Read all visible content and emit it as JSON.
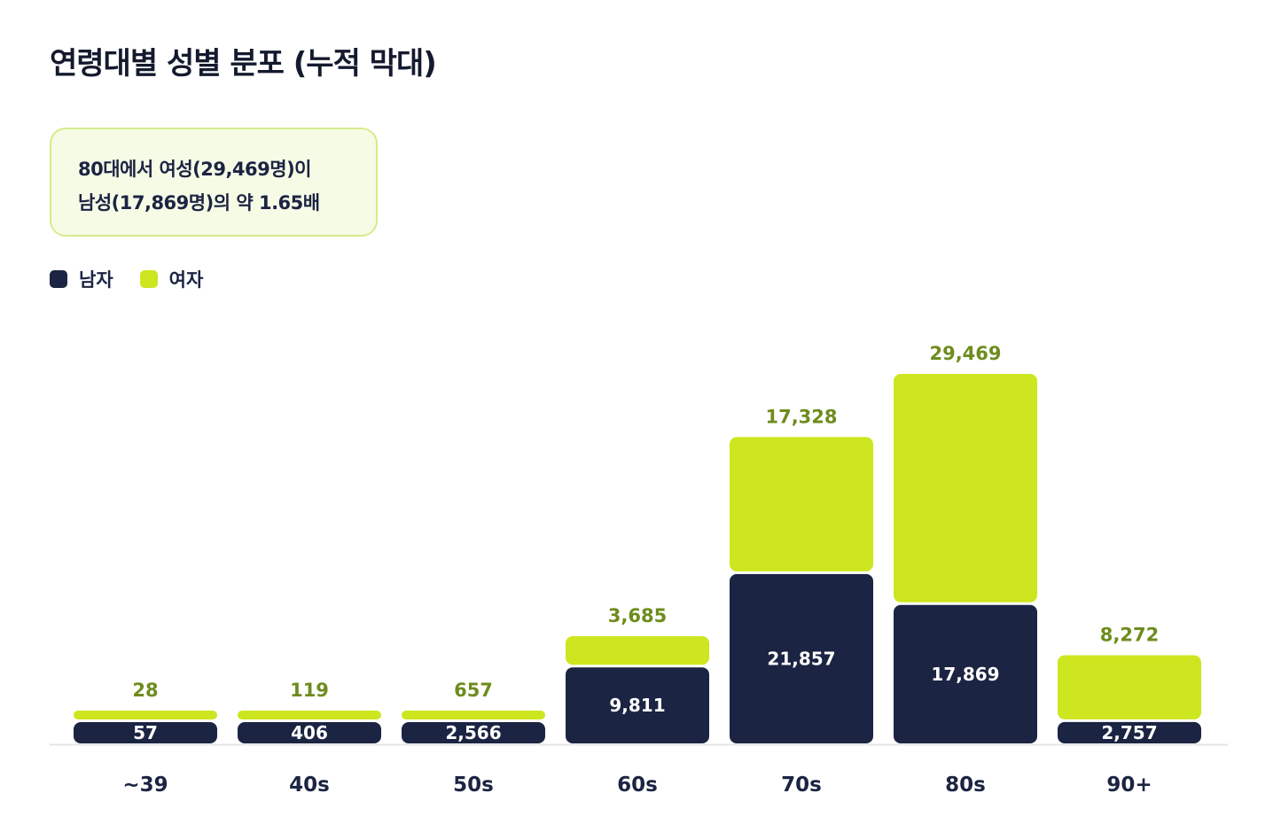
{
  "title": "연령대별 성별 분포 (누적 막대)",
  "callout": {
    "line1": "80대에서 여성(29,469명)이",
    "line2": "남성(17,869명)의 약 1.65배"
  },
  "legend": {
    "male_label": "남자",
    "female_label": "여자"
  },
  "colors": {
    "male": "#1b2442",
    "female": "#cde61f",
    "female_label": "#6e8c1e",
    "axis": "#e3e5e8"
  },
  "chart_data": {
    "type": "bar",
    "stacked": true,
    "categories": [
      "~39",
      "40s",
      "50s",
      "60s",
      "70s",
      "80s",
      "90+"
    ],
    "series": [
      {
        "name": "남자",
        "values": [
          57,
          406,
          2566,
          9811,
          21857,
          17869,
          2757
        ]
      },
      {
        "name": "여자",
        "values": [
          28,
          119,
          657,
          3685,
          17328,
          29469,
          8272
        ]
      }
    ],
    "value_labels": {
      "male": [
        "57",
        "406",
        "2,566",
        "9,811",
        "21,857",
        "17,869",
        "2,757"
      ],
      "female": [
        "28",
        "119",
        "657",
        "3,685",
        "17,328",
        "29,469",
        "8,272"
      ]
    },
    "legend_position": "top-left"
  }
}
